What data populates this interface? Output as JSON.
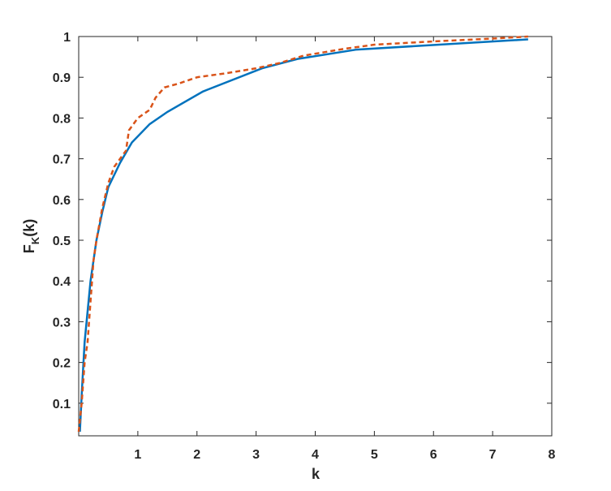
{
  "chart_data": {
    "type": "line",
    "x_label": "k",
    "y_label": [
      "F",
      "K",
      "(k)"
    ],
    "series": [
      {
        "color": "#0072BD",
        "dash": "solid",
        "x": [
          0.02,
          0.05,
          0.1,
          0.2,
          0.3,
          0.4,
          0.5,
          0.7,
          0.9,
          1.2,
          1.5,
          2.1,
          3.1,
          3.7,
          4.7,
          7.6
        ],
        "values": [
          0.03,
          0.12,
          0.25,
          0.4,
          0.5,
          0.57,
          0.63,
          0.69,
          0.74,
          0.785,
          0.815,
          0.865,
          0.922,
          0.945,
          0.968,
          0.993
        ]
      },
      {
        "color": "#D95319",
        "dash": "dashed",
        "x": [
          0,
          0.05,
          0.1,
          0.15,
          0.2,
          0.25,
          0.3,
          0.4,
          0.5,
          0.6,
          0.8,
          0.85,
          1.0,
          1.2,
          1.3,
          1.45,
          1.7,
          2.0,
          2.5,
          3.0,
          3.4,
          3.8,
          4.5,
          5.0,
          6.0,
          7.0,
          7.6
        ],
        "values": [
          0.03,
          0.1,
          0.2,
          0.25,
          0.35,
          0.45,
          0.5,
          0.58,
          0.64,
          0.68,
          0.72,
          0.77,
          0.8,
          0.82,
          0.85,
          0.875,
          0.885,
          0.9,
          0.91,
          0.922,
          0.935,
          0.953,
          0.97,
          0.98,
          0.988,
          0.995,
          1.0
        ]
      }
    ],
    "xlim": [
      0,
      8
    ],
    "xticks": [
      1,
      2,
      3,
      4,
      5,
      6,
      7,
      8
    ],
    "ylim": [
      0.02,
      1
    ],
    "yticks": [
      0.1,
      0.2,
      0.3,
      0.4,
      0.5,
      0.6,
      0.7,
      0.8,
      0.9,
      1
    ]
  }
}
